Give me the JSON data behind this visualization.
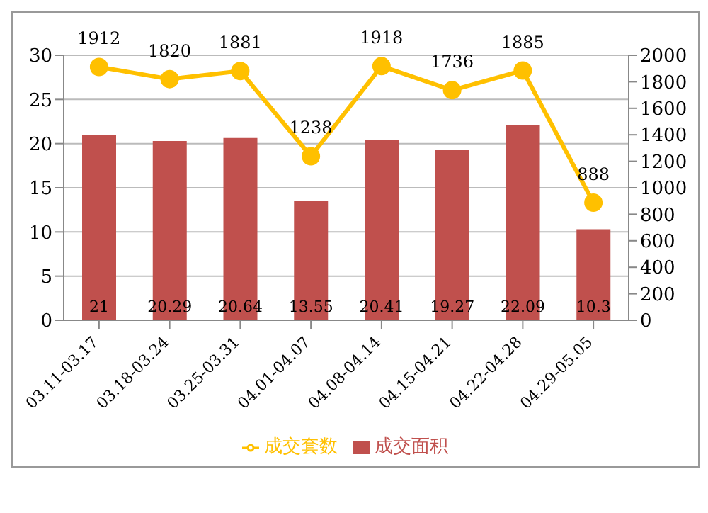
{
  "chart_data": {
    "type": "bar",
    "categories": [
      "03.11-03.17",
      "03.18-03.24",
      "03.25-03.31",
      "04.01-04.07",
      "04.08-04.14",
      "04.15-04.21",
      "04.22-04.28",
      "04.29-05.05"
    ],
    "series": [
      {
        "name": "成交面积",
        "color": "#c0504d",
        "values": [
          21,
          20.29,
          20.64,
          13.55,
          20.41,
          19.27,
          22.09,
          10.3
        ]
      },
      {
        "name": "成交套数",
        "type": "line",
        "axis": "y2",
        "color": "#ffc000",
        "values": [
          1912,
          1820,
          1881,
          1238,
          1918,
          1736,
          1885,
          888
        ]
      }
    ],
    "ylim": [
      0,
      30
    ],
    "yticks": [
      0,
      5,
      10,
      15,
      20,
      25,
      30
    ],
    "y2lim": [
      0,
      2000
    ],
    "y2ticks": [
      0,
      200,
      400,
      600,
      800,
      1000,
      1200,
      1400,
      1600,
      1800,
      2000
    ],
    "grid": "y",
    "legend": "bottom",
    "marker": "circle",
    "data_labels": true
  }
}
